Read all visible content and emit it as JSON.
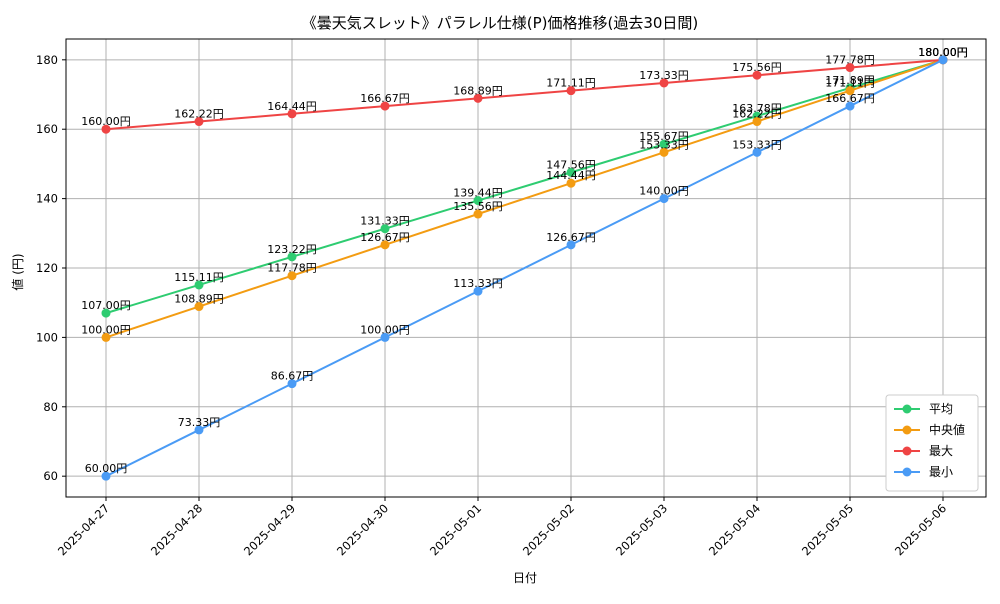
{
  "chart_data": {
    "type": "line",
    "title": "《曇天気スレット》パラレル仕様(P)価格推移(過去30日間)",
    "xlabel": "日付",
    "ylabel": "値 (円)",
    "categories": [
      "2025-04-27",
      "2025-04-28",
      "2025-04-29",
      "2025-04-30",
      "2025-05-01",
      "2025-05-02",
      "2025-05-03",
      "2025-05-04",
      "2025-05-05",
      "2025-05-06"
    ],
    "ylim": [
      54,
      186
    ],
    "yticks": [
      60,
      80,
      100,
      120,
      140,
      160,
      180
    ],
    "grid": true,
    "legend_position": "bottom-right",
    "value_suffix": "円",
    "series": [
      {
        "name": "平均",
        "color": "#2ecc71",
        "values": [
          107.0,
          115.11,
          123.22,
          131.33,
          139.44,
          147.56,
          155.67,
          163.78,
          171.89,
          180.0
        ]
      },
      {
        "name": "中央値",
        "color": "#f39c12",
        "values": [
          100.0,
          108.89,
          117.78,
          126.67,
          135.56,
          144.44,
          153.33,
          162.22,
          171.11,
          180.0
        ]
      },
      {
        "name": "最大",
        "color": "#ef4444",
        "values": [
          160.0,
          162.22,
          164.44,
          166.67,
          168.89,
          171.11,
          173.33,
          175.56,
          177.78,
          180.0
        ]
      },
      {
        "name": "最小",
        "color": "#4a9bf5",
        "values": [
          60.0,
          73.33,
          86.67,
          100.0,
          113.33,
          126.67,
          140.0,
          153.33,
          166.67,
          180.0
        ]
      }
    ]
  }
}
